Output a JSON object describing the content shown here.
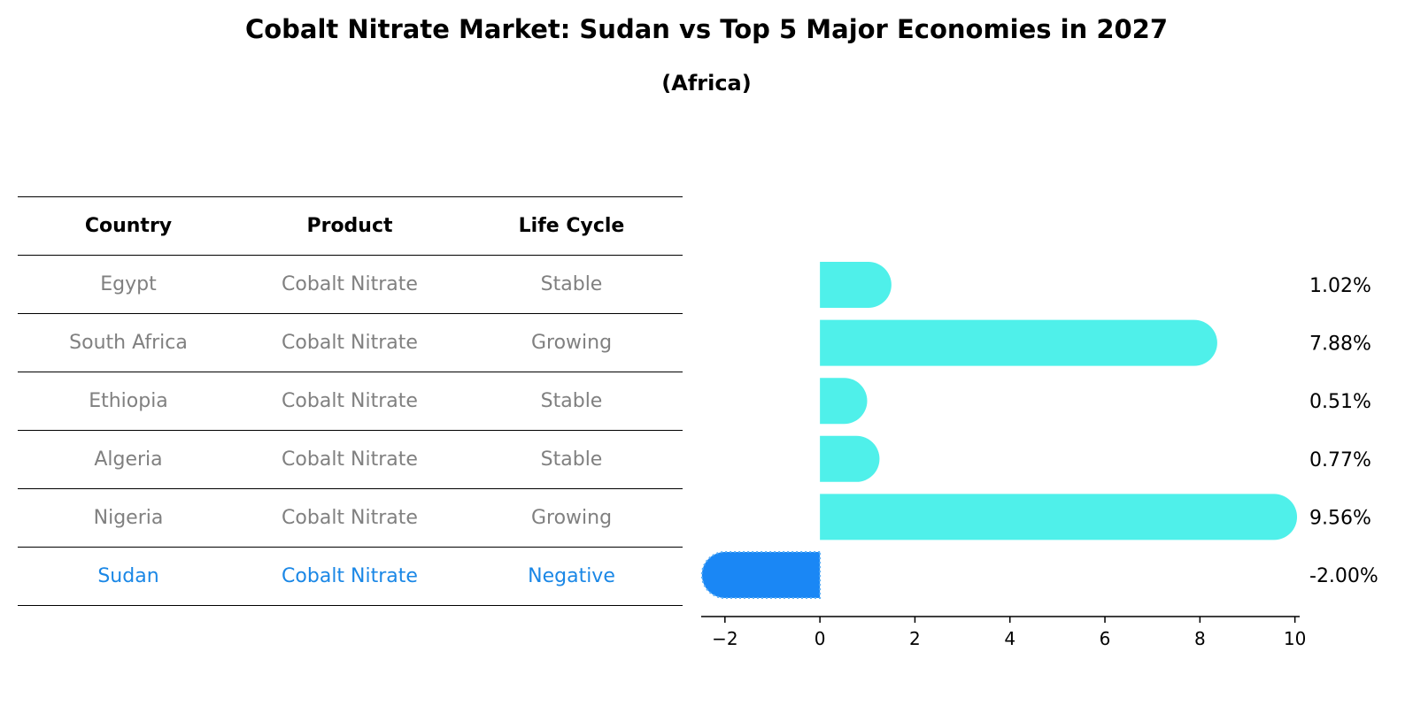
{
  "title": "Cobalt Nitrate Market: Sudan vs Top 5 Major Economies in 2027",
  "subtitle": "(Africa)",
  "table": {
    "headers": [
      "Country",
      "Product",
      "Life Cycle"
    ],
    "rows": [
      {
        "country": "Egypt",
        "product": "Cobalt Nitrate",
        "life_cycle": "Stable",
        "highlight": false
      },
      {
        "country": "South Africa",
        "product": "Cobalt Nitrate",
        "life_cycle": "Growing",
        "highlight": false
      },
      {
        "country": "Ethiopia",
        "product": "Cobalt Nitrate",
        "life_cycle": "Stable",
        "highlight": false
      },
      {
        "country": "Algeria",
        "product": "Cobalt Nitrate",
        "life_cycle": "Stable",
        "highlight": false
      },
      {
        "country": "Nigeria",
        "product": "Cobalt Nitrate",
        "life_cycle": "Growing",
        "highlight": false
      },
      {
        "country": "Sudan",
        "product": "Cobalt Nitrate",
        "life_cycle": "Negative",
        "highlight": true
      }
    ]
  },
  "colors": {
    "bar": "#4ff0ea",
    "highlight_bar": "#1a87f5",
    "text_muted": "#808080",
    "text_highlight": "#1a87e6"
  },
  "chart_data": {
    "type": "bar",
    "orientation": "horizontal",
    "categories": [
      "Egypt",
      "South Africa",
      "Ethiopia",
      "Algeria",
      "Nigeria",
      "Sudan"
    ],
    "values": [
      1.02,
      7.88,
      0.51,
      0.77,
      9.56,
      -2.0
    ],
    "value_labels": [
      "1.02%",
      "7.88%",
      "0.51%",
      "0.77%",
      "9.56%",
      "-2.00%"
    ],
    "highlight_index": 5,
    "xlim": [
      -2.5,
      10.1
    ],
    "xticks": [
      -2,
      0,
      2,
      4,
      6,
      8,
      10
    ],
    "xtick_labels": [
      "−2",
      "0",
      "2",
      "4",
      "6",
      "8",
      "10"
    ],
    "xlabel": "",
    "ylabel": "",
    "grid": false
  }
}
